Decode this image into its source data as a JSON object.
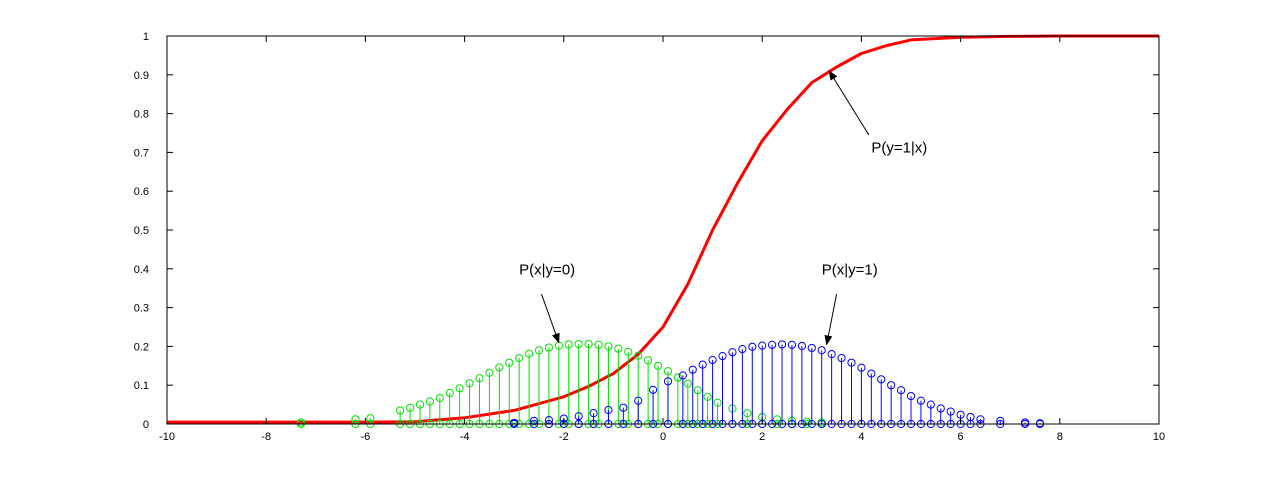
{
  "chart_data": {
    "type": "scatter",
    "title": "",
    "xlabel": "",
    "ylabel": "",
    "xlim": [
      -10,
      10
    ],
    "ylim": [
      0,
      1
    ],
    "grid": false,
    "x_ticks": [
      "-10",
      "-8",
      "-6",
      "-4",
      "-2",
      "0",
      "2",
      "4",
      "6",
      "8",
      "10"
    ],
    "y_ticks": [
      "0",
      "0.1",
      "0.2",
      "0.3",
      "0.4",
      "0.5",
      "0.6",
      "0.7",
      "0.8",
      "0.9",
      "1"
    ],
    "series": [
      {
        "kind": "line",
        "color": "#ff0000",
        "x": [
          -10,
          -9,
          -8,
          -7,
          -6,
          -5,
          -4,
          -3,
          -2,
          -1.5,
          -1,
          -0.5,
          0,
          0.5,
          1,
          1.5,
          2,
          2.5,
          3,
          3.5,
          4,
          4.5,
          5,
          6,
          7,
          8,
          9,
          10
        ],
        "y": [
          0.005,
          0.005,
          0.005,
          0.005,
          0.005,
          0.006,
          0.016,
          0.035,
          0.07,
          0.097,
          0.13,
          0.18,
          0.25,
          0.36,
          0.5,
          0.62,
          0.73,
          0.81,
          0.88,
          0.92,
          0.955,
          0.975,
          0.99,
          0.997,
          0.999,
          1,
          1,
          1
        ]
      },
      {
        "kind": "stem",
        "color": "#00e000",
        "x": [
          -7.3,
          -6.2,
          -5.9,
          -5.3,
          -5.1,
          -4.9,
          -4.7,
          -4.5,
          -4.3,
          -4.1,
          -3.9,
          -3.7,
          -3.5,
          -3.3,
          -3.1,
          -2.9,
          -2.7,
          -2.5,
          -2.3,
          -2.1,
          -1.9,
          -1.7,
          -1.5,
          -1.3,
          -1.1,
          -0.9,
          -0.7,
          -0.5,
          -0.3,
          -0.1,
          0.1,
          0.3,
          0.5,
          0.7,
          0.9,
          1.1,
          1.4,
          1.7,
          2.0,
          2.3,
          2.6,
          2.9,
          3.2
        ],
        "y": [
          0.004,
          0.012,
          0.015,
          0.035,
          0.042,
          0.05,
          0.058,
          0.067,
          0.08,
          0.092,
          0.105,
          0.118,
          0.132,
          0.146,
          0.158,
          0.17,
          0.181,
          0.19,
          0.197,
          0.202,
          0.205,
          0.206,
          0.206,
          0.204,
          0.2,
          0.194,
          0.186,
          0.176,
          0.164,
          0.15,
          0.136,
          0.12,
          0.104,
          0.087,
          0.07,
          0.055,
          0.04,
          0.028,
          0.018,
          0.012,
          0.008,
          0.006,
          0.004
        ]
      },
      {
        "kind": "stem",
        "color": "#0000ff",
        "x": [
          -3,
          -2.6,
          -2.3,
          -2.0,
          -1.7,
          -1.4,
          -1.1,
          -0.8,
          -0.5,
          -0.2,
          0.1,
          0.4,
          0.6,
          0.8,
          1.0,
          1.2,
          1.4,
          1.6,
          1.8,
          2.0,
          2.2,
          2.4,
          2.6,
          2.8,
          3.0,
          3.2,
          3.4,
          3.6,
          3.8,
          4.0,
          4.2,
          4.4,
          4.6,
          4.8,
          5.0,
          5.2,
          5.4,
          5.6,
          5.8,
          6.0,
          6.2,
          6.4,
          6.8,
          7.3,
          7.6
        ],
        "y": [
          0.003,
          0.008,
          0.01,
          0.014,
          0.02,
          0.028,
          0.036,
          0.042,
          0.06,
          0.088,
          0.11,
          0.125,
          0.14,
          0.153,
          0.165,
          0.175,
          0.185,
          0.193,
          0.199,
          0.202,
          0.204,
          0.205,
          0.204,
          0.201,
          0.196,
          0.19,
          0.18,
          0.17,
          0.158,
          0.145,
          0.13,
          0.115,
          0.1,
          0.087,
          0.072,
          0.06,
          0.05,
          0.04,
          0.032,
          0.024,
          0.018,
          0.012,
          0.008,
          0.004,
          0.002
        ]
      }
    ],
    "annotations": [
      {
        "text": "P(x|y=0)",
        "label_x": -2.9,
        "label_y": 0.385,
        "arrow_from_x": -2.45,
        "arrow_from_y": 0.335,
        "arrow_to_x": -2.1,
        "arrow_to_y": 0.21
      },
      {
        "text": "P(x|y=1)",
        "label_x": 3.2,
        "label_y": 0.385,
        "arrow_from_x": 3.5,
        "arrow_from_y": 0.335,
        "arrow_to_x": 3.3,
        "arrow_to_y": 0.205
      },
      {
        "text": "P(y=1|x)",
        "label_x": 4.2,
        "label_y": 0.7,
        "arrow_from_x": 4.15,
        "arrow_from_y": 0.745,
        "arrow_to_x": 3.35,
        "arrow_to_y": 0.91
      }
    ]
  }
}
